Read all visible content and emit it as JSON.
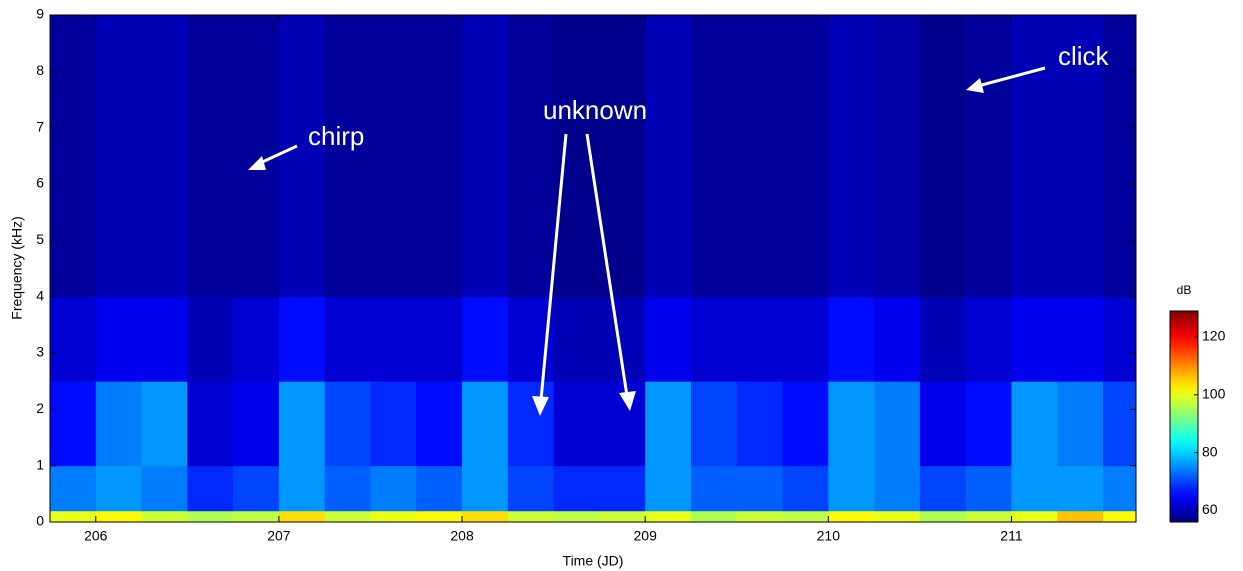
{
  "chart_data": {
    "type": "heatmap",
    "xlabel": "Time (JD)",
    "ylabel": "Frequency (kHz)",
    "xlim": [
      205.75,
      211.68
    ],
    "xticks": [
      206,
      207,
      208,
      209,
      210,
      211
    ],
    "ylim": [
      0,
      9
    ],
    "yticks": [
      0,
      1,
      2,
      3,
      4,
      5,
      6,
      7,
      8,
      9
    ],
    "x_bins": [
      205.75,
      206,
      206.25,
      206.5,
      206.75,
      207,
      207.25,
      207.5,
      207.75,
      208,
      208.25,
      208.5,
      208.75,
      209,
      209.25,
      209.5,
      209.75,
      210,
      210.25,
      210.5,
      210.75,
      211,
      211.25,
      211.5,
      211.68
    ],
    "y_bins": [
      0,
      0.2,
      1,
      2.5,
      4,
      9
    ],
    "z": [
      [
        100,
        102,
        98,
        96,
        97,
        104,
        98,
        100,
        102,
        104,
        98,
        97,
        98,
        100,
        96,
        98,
        97,
        102,
        100,
        96,
        98,
        100,
        106,
        102
      ],
      [
        74,
        76,
        74,
        68,
        70,
        76,
        72,
        74,
        72,
        76,
        70,
        68,
        68,
        76,
        72,
        72,
        70,
        76,
        74,
        70,
        72,
        76,
        76,
        74
      ],
      [
        66,
        74,
        76,
        62,
        64,
        76,
        70,
        68,
        66,
        76,
        68,
        62,
        62,
        76,
        70,
        68,
        66,
        76,
        74,
        64,
        66,
        76,
        74,
        70
      ],
      [
        62,
        64,
        64,
        60,
        62,
        66,
        62,
        62,
        62,
        66,
        62,
        60,
        60,
        64,
        62,
        62,
        62,
        66,
        64,
        60,
        62,
        64,
        64,
        62
      ],
      [
        58,
        60,
        60,
        58,
        58,
        60,
        58,
        58,
        58,
        60,
        58,
        57,
        57,
        60,
        58,
        58,
        58,
        60,
        59,
        57,
        58,
        60,
        60,
        58
      ]
    ],
    "colorbar": {
      "label": "dB",
      "clim": [
        56,
        129
      ],
      "ticks": [
        60,
        80,
        100,
        120
      ],
      "colormap": "jet"
    },
    "annotations": [
      "chirp",
      "unknown",
      "click"
    ]
  }
}
